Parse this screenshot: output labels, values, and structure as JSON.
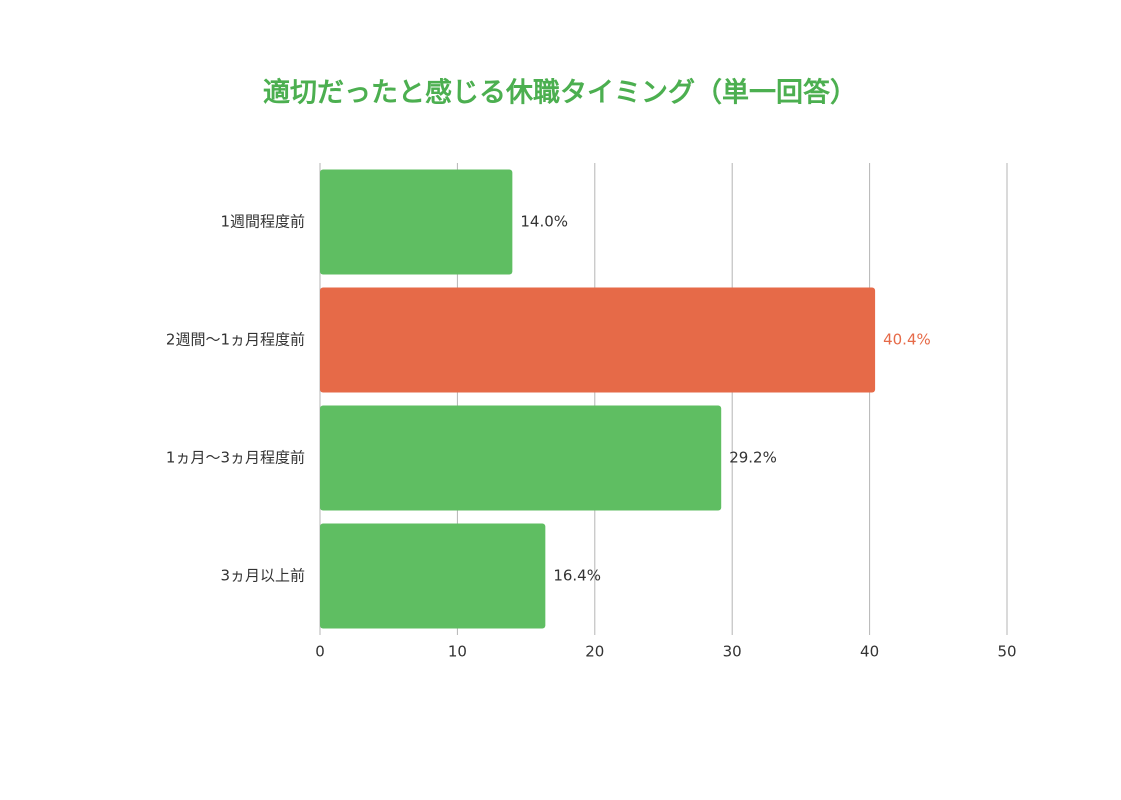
{
  "chart_data": {
    "type": "bar",
    "orientation": "horizontal",
    "title": "適切だったと感じる休職タイミング（単一回答）",
    "categories": [
      "1週間程度前",
      "2週間〜1ヵ月程度前",
      "1ヵ月〜3ヵ月程度前",
      "3ヵ月以上前"
    ],
    "values": [
      14.0,
      40.4,
      29.2,
      16.4
    ],
    "value_labels": [
      "14.0%",
      "40.4%",
      "29.2%",
      "16.4%"
    ],
    "colors": [
      "#5fbe62",
      "#e66a48",
      "#5fbe62",
      "#5fbe62"
    ],
    "value_label_colors": [
      "#333333",
      "#e66a48",
      "#333333",
      "#333333"
    ],
    "xlim": [
      0,
      50
    ],
    "xticks": [
      0,
      10,
      20,
      30,
      40,
      50
    ],
    "grid": true
  }
}
